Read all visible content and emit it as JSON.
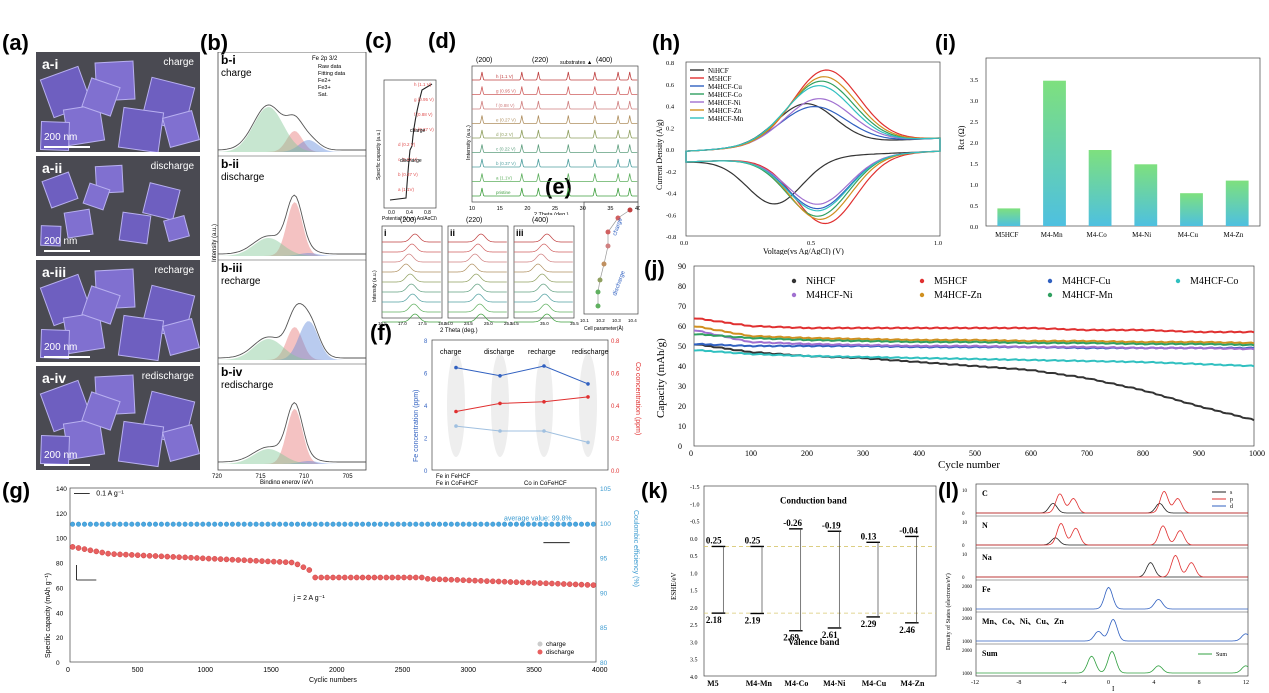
{
  "panels": {
    "a": "(a)",
    "b": "(b)",
    "c": "(c)",
    "d": "(d)",
    "e": "(e)",
    "f": "(f)",
    "g": "(g)",
    "h": "(h)",
    "i": "(i)",
    "j": "(j)",
    "k": "(k)",
    "l": "(l)"
  },
  "sem": [
    {
      "label": "a-i",
      "state": "charge",
      "scale": "200 nm"
    },
    {
      "label": "a-ii",
      "state": "discharge",
      "scale": "200 nm"
    },
    {
      "label": "a-iii",
      "state": "recharge",
      "scale": "200 nm"
    },
    {
      "label": "a-iv",
      "state": "redischarge",
      "scale": "200 nm"
    }
  ],
  "xps": {
    "title": "Fe 2p 3/2",
    "legend": [
      "Raw data",
      "Fitting data",
      "Fe2+",
      "Fe3+",
      "Sat."
    ],
    "subpanels": [
      {
        "id": "b-i",
        "name": "charge"
      },
      {
        "id": "b-ii",
        "name": "discharge"
      },
      {
        "id": "b-iii",
        "name": "recharge"
      },
      {
        "id": "b-iv",
        "name": "redischarge"
      }
    ],
    "ylabel": "Intensity (a.u.)",
    "xlabel": "Binding energy (eV)",
    "xticks": [
      "720",
      "715",
      "710",
      "705"
    ]
  },
  "c": {
    "ylabel": "Specific capacity (a.u.)",
    "xlabel": "Potential (V vs. Ag/AgCl)",
    "xticks": [
      "0.0",
      "0.4",
      "0.8"
    ],
    "labels": [
      "h (1.1 V)",
      "g (0.95 V)",
      "f (0.88 V)",
      "e (0.27 V)",
      "d (0.2 V)",
      "c (0.22 V)",
      "b (0.37 V)",
      "a (1.1V)"
    ],
    "notes": [
      "charge",
      "discharge"
    ]
  },
  "d": {
    "ylabel": "Intensity (a.u.)",
    "xlabel": "2 Theta (deg.)",
    "xticks": [
      "10",
      "15",
      "20",
      "25",
      "30",
      "35",
      "40"
    ],
    "peaks": [
      "(200)",
      "(220)",
      "(400)"
    ],
    "substrates": "substrates ▲",
    "labels": [
      "h (1.1 V)",
      "g (0.95 V)",
      "f (0.88 V)",
      "e (0.27 V)",
      "d (0.2 V)",
      "c (0.22 V)",
      "b (0.37 V)",
      "a (1.1V)",
      "pristine"
    ]
  },
  "dzoom": {
    "roman": [
      "i",
      "ii",
      "iii"
    ],
    "peaks": [
      "(200)",
      "(220)",
      "(400)"
    ],
    "xlabel": "2 Theta (deg.)",
    "ylabel": "Intensity (a.u.)",
    "ticks": [
      [
        "16.5",
        "17.0",
        "17.5",
        "18.0"
      ],
      [
        "24.0",
        "24.5",
        "25.0",
        "25.5"
      ],
      [
        "34.5",
        "35.0",
        "35.5"
      ]
    ]
  },
  "e": {
    "xlabel": "Cell parameter(Å)",
    "xticks": [
      "10.1",
      "10.2",
      "10.3",
      "10.4"
    ],
    "notes": [
      "charge",
      "discharge"
    ]
  },
  "f": {
    "yleft": "Fe concentration (ppm)",
    "yright": "Co concentration (ppm)",
    "yleft_ticks": [
      "0",
      "2",
      "4",
      "6",
      "8"
    ],
    "yright_ticks": [
      "0.0",
      "0.2",
      "0.4",
      "0.6",
      "0.8"
    ],
    "stages": [
      "charge",
      "discharge",
      "recharge",
      "redischarge"
    ],
    "legend": [
      "Fe in FeHCF",
      "Fe in CoFeHCF",
      "Co in CoFeHCF"
    ]
  },
  "g": {
    "ylabel": "Specific capacity (mAh g⁻¹)",
    "yright": "Coulombic efficiency (%)",
    "xlabel": "Cyclic numbers",
    "xticks": [
      "0",
      "500",
      "1000",
      "1500",
      "2000",
      "2500",
      "3000",
      "3500",
      "4000"
    ],
    "yticks": [
      "0",
      "20",
      "40",
      "60",
      "80",
      "100",
      "120",
      "140"
    ],
    "yrticks": [
      "80",
      "85",
      "90",
      "95",
      "100",
      "105"
    ],
    "rate1": "0.1 A g⁻¹",
    "rate2": "j = 2 A g⁻¹",
    "avg": "average value: 99.8%",
    "legend": [
      "charge",
      "discharge"
    ]
  },
  "h": {
    "ylabel": "Current Density (A/g)",
    "xlabel": "Voltage(vs Ag/AgCl) (V)",
    "xticks": [
      "0.0",
      "0.5",
      "1.0"
    ],
    "yticks": [
      "0.8",
      "0.6",
      "0.4",
      "0.2",
      "0.0",
      "-0.2",
      "-0.4",
      "-0.6",
      "-0.8"
    ],
    "series": [
      {
        "name": "NiHCF",
        "color": "#333333"
      },
      {
        "name": "M5HCF",
        "color": "#e03030"
      },
      {
        "name": "M4HCF-Cu",
        "color": "#3060c0"
      },
      {
        "name": "M4HCF-Co",
        "color": "#30a060"
      },
      {
        "name": "M4HCF-Ni",
        "color": "#a070d0"
      },
      {
        "name": "M4HCF-Zn",
        "color": "#d09020"
      },
      {
        "name": "M4HCF-Mn",
        "color": "#30c0c0"
      }
    ]
  },
  "chart_data": [
    {
      "type": "bar",
      "panel": "i",
      "categories": [
        "M5HCF",
        "M4-Mn",
        "M4-Co",
        "M4-Ni",
        "M4-Cu",
        "M4-Zn"
      ],
      "values": [
        0.42,
        3.46,
        1.81,
        1.47,
        0.78,
        1.08
      ],
      "ylabel": "Rct (Ω)",
      "ylim": [
        0,
        4.0
      ],
      "yticks": [
        "0.0",
        "0.5",
        "1.0",
        "1.5",
        "2.0",
        "2.5",
        "3.0",
        "3.5"
      ]
    },
    {
      "type": "line",
      "panel": "j",
      "xlabel": "Cycle number",
      "ylabel": "Capacity (mAh/g)",
      "xlim": [
        0,
        1000
      ],
      "ylim": [
        0,
        90
      ],
      "xticks": [
        "0",
        "100",
        "200",
        "300",
        "400",
        "500",
        "600",
        "700",
        "800",
        "900",
        "1000"
      ],
      "yticks": [
        "0",
        "10",
        "20",
        "30",
        "40",
        "50",
        "60",
        "70",
        "80",
        "90"
      ],
      "series": [
        {
          "name": "NiHCF",
          "color": "#333333",
          "x": [
            0,
            100,
            200,
            300,
            400,
            500,
            600,
            700,
            800,
            900,
            1000
          ],
          "values": [
            51,
            47,
            45,
            44,
            42,
            40,
            38,
            34,
            28,
            20,
            13
          ]
        },
        {
          "name": "M5HCF",
          "color": "#e03030",
          "x": [
            0,
            100,
            200,
            300,
            400,
            500,
            600,
            700,
            800,
            900,
            1000
          ],
          "values": [
            64,
            60,
            59,
            59,
            59,
            59,
            59,
            58,
            58,
            57,
            57
          ]
        },
        {
          "name": "M4HCF-Cu",
          "color": "#3060c0",
          "x": [
            0,
            100,
            200,
            300,
            400,
            500,
            600,
            700,
            800,
            900,
            1000
          ],
          "values": [
            51,
            50,
            50,
            50,
            49.5,
            49.5,
            49.5,
            49,
            49,
            49,
            49
          ]
        },
        {
          "name": "M4HCF-Co",
          "color": "#30c0c0",
          "x": [
            0,
            100,
            200,
            300,
            400,
            500,
            600,
            700,
            800,
            900,
            1000
          ],
          "values": [
            48,
            46,
            45,
            44.5,
            44,
            43.5,
            43,
            42.5,
            42,
            41,
            40
          ]
        },
        {
          "name": "M4HCF-Ni",
          "color": "#a070d0",
          "x": [
            0,
            100,
            200,
            300,
            400,
            500,
            600,
            700,
            800,
            900,
            1000
          ],
          "values": [
            58,
            52,
            51,
            50.5,
            50,
            50,
            49.5,
            49.5,
            49,
            49,
            48.5
          ]
        },
        {
          "name": "M4HCF-Zn",
          "color": "#d09020",
          "x": [
            0,
            100,
            200,
            300,
            400,
            500,
            600,
            700,
            800,
            900,
            1000
          ],
          "values": [
            60,
            55,
            54,
            53.5,
            53,
            53,
            52.5,
            52.5,
            52,
            52,
            51.5
          ]
        },
        {
          "name": "M4HCF-Mn",
          "color": "#30a060",
          "x": [
            0,
            100,
            200,
            300,
            400,
            500,
            600,
            700,
            800,
            900,
            1000
          ],
          "values": [
            56,
            54,
            53,
            52.5,
            52,
            52,
            51.5,
            51.5,
            51,
            51,
            50.5
          ]
        }
      ]
    },
    {
      "type": "line",
      "panel": "h",
      "xlabel": "Voltage(vs Ag/AgCl) (V)",
      "ylabel": "Current Density (A/g)",
      "xlim": [
        0,
        1.0
      ],
      "ylim": [
        -0.8,
        0.8
      ],
      "series": [
        {
          "name": "NiHCF",
          "x": [
            0,
            0.25,
            0.45,
            0.55,
            0.7,
            1.0
          ],
          "values": [
            0.0,
            0.1,
            0.38,
            0.35,
            0.1,
            0.0
          ]
        },
        {
          "name": "M5HCF",
          "x": [
            0,
            0.25,
            0.45,
            0.55,
            0.7,
            1.0
          ],
          "values": [
            0.0,
            0.15,
            0.55,
            0.68,
            0.3,
            0.05
          ]
        }
      ]
    },
    {
      "type": "bar",
      "panel": "k",
      "categories": [
        "M5",
        "M4-Mn",
        "M4-Co",
        "M4-Ni",
        "M4-Cu",
        "M4-Zn"
      ],
      "cb": [
        0.25,
        0.25,
        -0.26,
        -0.19,
        0.13,
        -0.04
      ],
      "vb": [
        2.18,
        2.19,
        2.69,
        2.61,
        2.29,
        2.46
      ],
      "ylabel": "ESHE/eV",
      "ylim": [
        -1.5,
        4.0
      ],
      "title": "Conduction band",
      "subtitle": "Valence band",
      "yticks": [
        "-1.5",
        "-1.0",
        "-0.5",
        "0.0",
        "0.5",
        "1.0",
        "1.5",
        "2.0",
        "2.5",
        "3.0",
        "3.5",
        "4.0"
      ]
    }
  ],
  "l": {
    "ylabel": "Density of States (electrons/eV)",
    "xlabel": "I",
    "legend": [
      "s",
      "p",
      "d"
    ],
    "sumlabel": "Sum",
    "rows": [
      "C",
      "N",
      "Na",
      "Fe",
      "Mn、Co、Ni、Cu、Zn",
      "Sum"
    ],
    "xticks": [
      "-12",
      "-8",
      "-4",
      "0",
      "4",
      "8",
      "12"
    ],
    "ytop": [
      "10",
      "10",
      "10",
      "2000",
      "2000",
      "2000"
    ],
    "ybottom": [
      "0",
      "0",
      "0",
      "1000",
      "1000",
      "1000"
    ]
  }
}
